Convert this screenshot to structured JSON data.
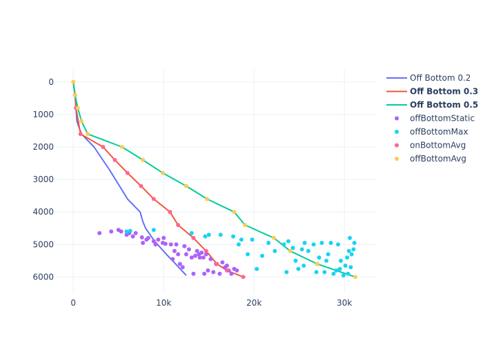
{
  "chart_data": {
    "type": "line+scatter",
    "xlim": [
      -2000,
      33500
    ],
    "ylim": [
      6500,
      -400
    ],
    "y_reversed": true,
    "grid": true,
    "legend_placement": "right",
    "x_ticks": [
      0,
      10000,
      20000,
      30000
    ],
    "x_tick_labels": [
      "0",
      "10k",
      "20k",
      "30k"
    ],
    "y_ticks": [
      0,
      1000,
      2000,
      3000,
      4000,
      5000,
      6000
    ],
    "y_tick_labels": [
      "0",
      "1000",
      "2000",
      "3000",
      "4000",
      "5000",
      "6000"
    ],
    "series": [
      {
        "name": "Off Bottom 0.2",
        "mode": "line",
        "color": "#636efa",
        "bold": false,
        "x": [
          0,
          200,
          400,
          900,
          2300,
          4000,
          6000,
          7400,
          7700,
          8000,
          9000,
          10300,
          11500,
          12500
        ],
        "y": [
          0,
          400,
          1200,
          1600,
          2000,
          2700,
          3600,
          4000,
          4300,
          4500,
          4900,
          5300,
          5650,
          5950
        ]
      },
      {
        "name": "Off Bottom 0.3",
        "mode": "line",
        "color": "#ef553b",
        "bold": true,
        "x": [
          0,
          200,
          300,
          800,
          3300,
          4600,
          6000,
          7500,
          8900,
          10700,
          11600,
          13300,
          14700,
          15900,
          17000,
          18800
        ],
        "y": [
          0,
          400,
          800,
          1600,
          2000,
          2400,
          2800,
          3200,
          3600,
          4000,
          4400,
          4800,
          5200,
          5600,
          5800,
          6000
        ]
      },
      {
        "name": "Off Bottom 0.5",
        "mode": "line",
        "color": "#00cc96",
        "bold": true,
        "x": [
          0,
          200,
          500,
          900,
          1600,
          5400,
          7700,
          9900,
          12500,
          14800,
          17800,
          19000,
          22200,
          24000,
          27000,
          31200
        ],
        "y": [
          0,
          400,
          800,
          1200,
          1600,
          2000,
          2400,
          2800,
          3200,
          3600,
          4000,
          4400,
          4800,
          5200,
          5600,
          6000
        ]
      },
      {
        "name": "offBottomStatic",
        "mode": "markers",
        "color": "#ab63fa",
        "bold": false,
        "x": [
          2900,
          4200,
          5000,
          5300,
          5900,
          6200,
          6600,
          6900,
          7600,
          7700,
          8100,
          8300,
          8900,
          9100,
          9400,
          9900,
          10000,
          10200,
          10800,
          11000,
          11200,
          11400,
          11600,
          11800,
          12100,
          12300,
          12500,
          12800,
          13100,
          13300,
          13500,
          13700,
          13900,
          14000,
          14200,
          14400,
          14500,
          14700,
          14900,
          15200,
          15500,
          15800,
          16200,
          16500,
          16800,
          17000,
          17200,
          17500,
          17800,
          18100
        ],
        "y": [
          4650,
          4600,
          4550,
          4600,
          4700,
          4650,
          4750,
          4650,
          4780,
          4950,
          4850,
          4800,
          4900,
          5000,
          4850,
          4950,
          4800,
          4980,
          5000,
          5450,
          5200,
          5000,
          5300,
          5600,
          5700,
          5050,
          5300,
          5150,
          5400,
          5900,
          5350,
          5200,
          5300,
          5400,
          5250,
          5400,
          5900,
          5300,
          5800,
          5450,
          5850,
          5600,
          5900,
          5550,
          5700,
          5650,
          5800,
          5900,
          5750,
          5800
        ]
      },
      {
        "name": "offBottomMax",
        "mode": "markers",
        "color": "#19d3f3",
        "bold": false,
        "x": [
          5900,
          6300,
          8900,
          13100,
          14600,
          15000,
          16300,
          17700,
          18300,
          18600,
          19300,
          19800,
          20300,
          20900,
          21600,
          22300,
          23300,
          23600,
          23800,
          24300,
          24600,
          24900,
          25300,
          25600,
          26000,
          26600,
          26900,
          27200,
          27500,
          27800,
          28200,
          28500,
          28800,
          29100,
          29300,
          29600,
          29900,
          30100,
          30300,
          30500,
          30600,
          30700,
          30800,
          31000,
          31100,
          30400,
          29500,
          28000,
          27000,
          25500
        ],
        "y": [
          4600,
          4580,
          4550,
          4650,
          4750,
          4700,
          4700,
          4750,
          5000,
          4850,
          5300,
          4850,
          5750,
          5350,
          4950,
          5200,
          5000,
          5850,
          4900,
          5100,
          5500,
          5750,
          5150,
          4950,
          5200,
          5000,
          5850,
          5400,
          4950,
          5850,
          5300,
          4950,
          5900,
          5800,
          5000,
          5500,
          5950,
          5650,
          5400,
          5200,
          4800,
          5700,
          5300,
          5150,
          4950,
          5900,
          5750,
          5500,
          5600,
          5650
        ]
      },
      {
        "name": "onBottomAvg",
        "mode": "markers",
        "color": "#ff6692",
        "bold": false,
        "x": [
          200,
          300,
          800,
          3300,
          4600,
          6000,
          7500,
          8900,
          10700,
          11600,
          13300,
          14700,
          15900,
          17000,
          18800
        ],
        "y": [
          400,
          800,
          1600,
          2000,
          2400,
          2800,
          3200,
          3600,
          4000,
          4400,
          4800,
          5200,
          5600,
          5800,
          6000
        ]
      },
      {
        "name": "offBottomAvg",
        "mode": "markers",
        "color": "#fecb52",
        "bold": false,
        "x": [
          0,
          200,
          500,
          900,
          1600,
          5400,
          7700,
          9900,
          12500,
          14800,
          17800,
          19000,
          22200,
          24000,
          27000,
          31200
        ],
        "y": [
          0,
          400,
          800,
          1200,
          1600,
          2000,
          2400,
          2800,
          3200,
          3600,
          4000,
          4400,
          4800,
          5200,
          5600,
          6000
        ]
      }
    ]
  }
}
